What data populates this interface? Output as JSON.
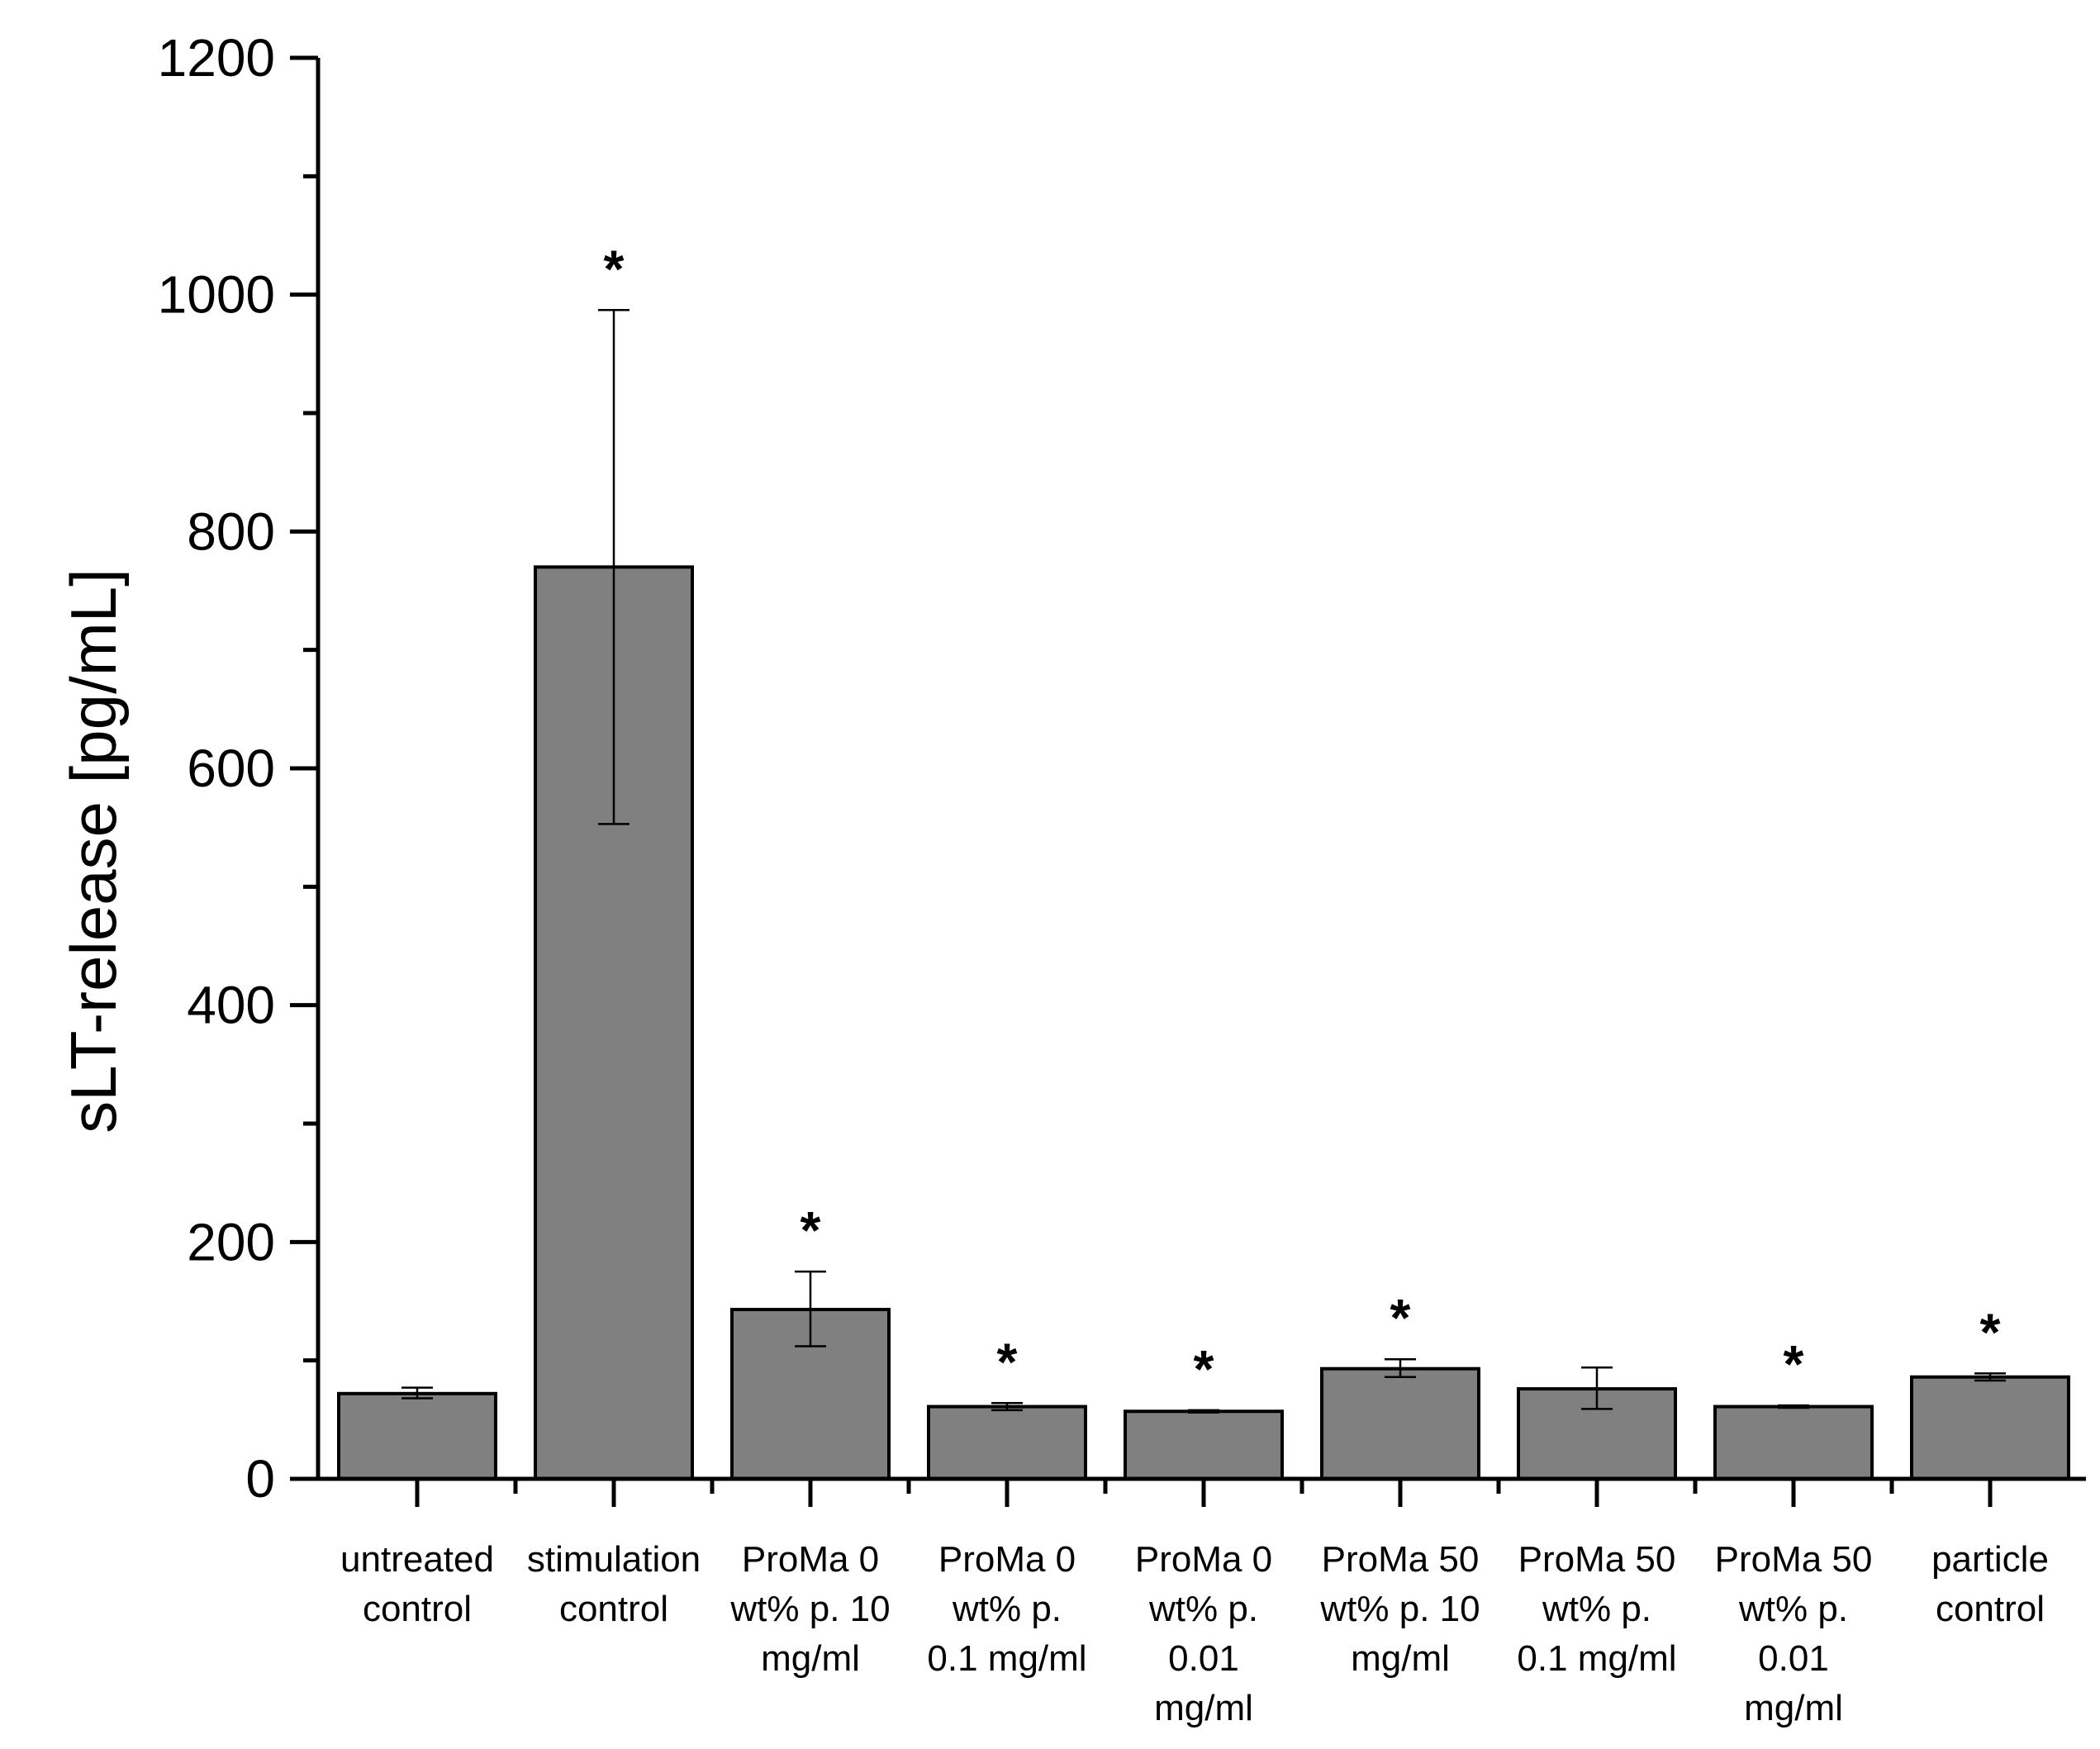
{
  "chart_data": {
    "type": "bar",
    "categories": [
      "untreated control",
      "stimulation control",
      "ProMa 0 wt% p. 10 mg/ml",
      "ProMa 0 wt% p. 0.1 mg/ml",
      "ProMa 0 wt% p. 0.01 mg/ml",
      "ProMa 50 wt% p. 10 mg/ml",
      "ProMa 50 wt% p. 0.1 mg/ml",
      "ProMa 50 wt% p. 0.01 mg/ml",
      "particle control"
    ],
    "category_label_lines": [
      [
        "untreated",
        "control"
      ],
      [
        "stimulation",
        "control"
      ],
      [
        "ProMa 0",
        "wt% p. 10",
        "mg/ml"
      ],
      [
        "ProMa 0",
        "wt% p.",
        "0.1 mg/ml"
      ],
      [
        "ProMa 0",
        "wt% p.",
        "0.01",
        "mg/ml"
      ],
      [
        "ProMa 50",
        "wt% p. 10",
        "mg/ml"
      ],
      [
        "ProMa 50",
        "wt% p.",
        "0.1 mg/ml"
      ],
      [
        "ProMa 50",
        "wt% p.",
        "0.01",
        "mg/ml"
      ],
      [
        "particle",
        "control"
      ]
    ],
    "values": [
      72,
      770,
      143,
      61,
      57,
      93,
      76,
      61,
      86
    ],
    "error_low": [
      68,
      553,
      112,
      58,
      56,
      86,
      59,
      60,
      83
    ],
    "error_high": [
      77,
      987,
      175,
      64,
      58,
      101,
      94,
      62,
      89
    ],
    "significance": [
      "",
      "*",
      "*",
      "*",
      "*",
      "*",
      "",
      "*",
      "*"
    ],
    "ylabel": "sLT-release [pg/mL]",
    "xlabel": "",
    "title": "",
    "ylim": [
      0,
      1200
    ],
    "y_major_ticks": [
      0,
      200,
      400,
      600,
      800,
      1000,
      1200
    ],
    "y_minor_step": 100,
    "grid": false,
    "legend": "none",
    "bar_color": "#808080"
  }
}
